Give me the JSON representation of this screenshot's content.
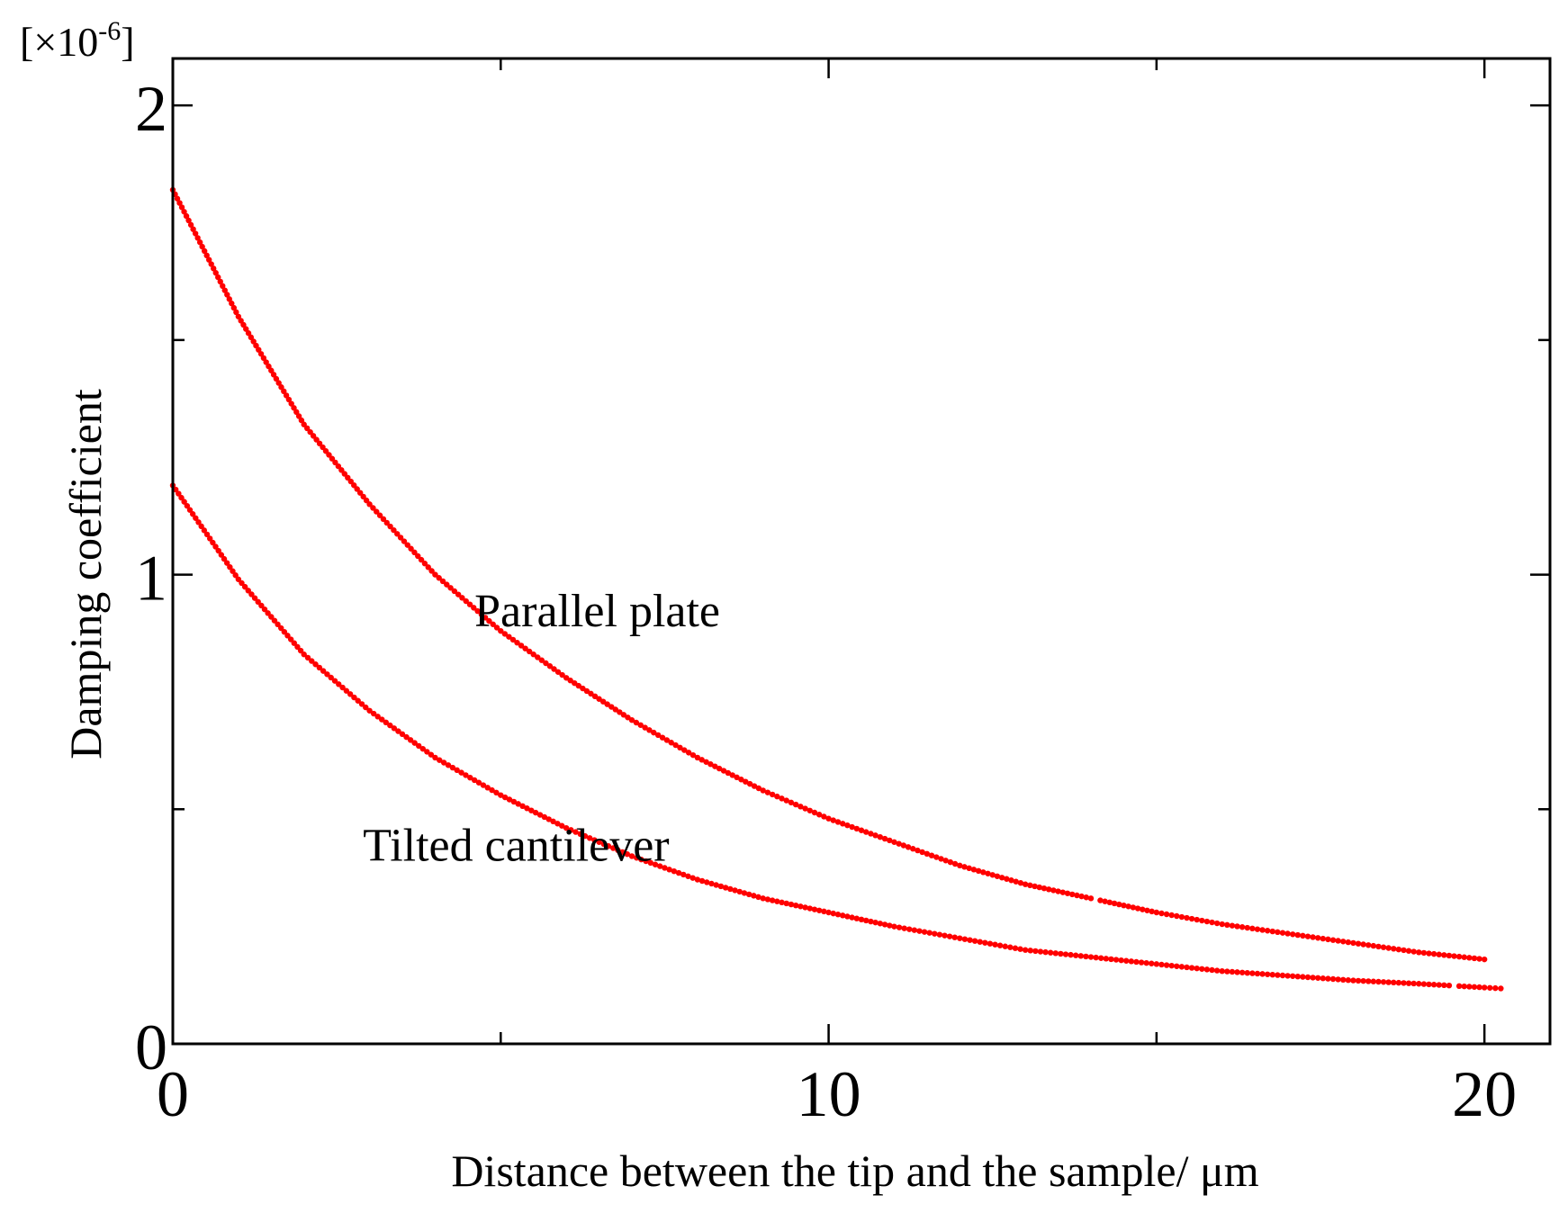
{
  "chart_data": {
    "type": "scatter",
    "title": "",
    "xlabel": "Distance between the tip and the sample/  μm",
    "ylabel": "Damping coefficient",
    "y_multiplier": "[×10",
    "y_multiplier_exp": "-6",
    "y_multiplier_close": "]",
    "xlim": [
      0,
      21
    ],
    "ylim": [
      0,
      2.1
    ],
    "x_major_ticks": [
      0,
      10,
      20
    ],
    "x_tick_labels": [
      "0",
      "10",
      "20"
    ],
    "x_minor_ticks": [
      5,
      15
    ],
    "y_major_ticks": [
      0,
      1,
      2
    ],
    "y_tick_labels": [
      "0",
      "1",
      "2"
    ],
    "y_minor_ticks": [
      0.5,
      1.5
    ],
    "grid": false,
    "color": "#ff0000",
    "series": [
      {
        "name": "Parallel plate",
        "label_at": [
          4.6,
          0.89
        ],
        "x": [
          0,
          1,
          2,
          3,
          4,
          5,
          6,
          7,
          8,
          9,
          10,
          11,
          12,
          13,
          14,
          15,
          16,
          17,
          18,
          19,
          20
        ],
        "y": [
          1.82,
          1.55,
          1.32,
          1.15,
          1.0,
          0.88,
          0.78,
          0.69,
          0.61,
          0.54,
          0.48,
          0.43,
          0.38,
          0.34,
          0.31,
          0.28,
          0.255,
          0.235,
          0.215,
          0.195,
          0.18
        ]
      },
      {
        "name": "Tilted cantilever",
        "label_at": [
          2.9,
          0.39
        ],
        "x": [
          0,
          1,
          2,
          3,
          4,
          5,
          6,
          7,
          8,
          9,
          10,
          11,
          12,
          13,
          14,
          15,
          16,
          17,
          18,
          19,
          20,
          20.25
        ],
        "y": [
          1.19,
          0.99,
          0.83,
          0.71,
          0.61,
          0.53,
          0.46,
          0.4,
          0.35,
          0.31,
          0.28,
          0.25,
          0.225,
          0.2,
          0.185,
          0.17,
          0.155,
          0.145,
          0.135,
          0.128,
          0.12,
          0.118
        ]
      }
    ]
  }
}
